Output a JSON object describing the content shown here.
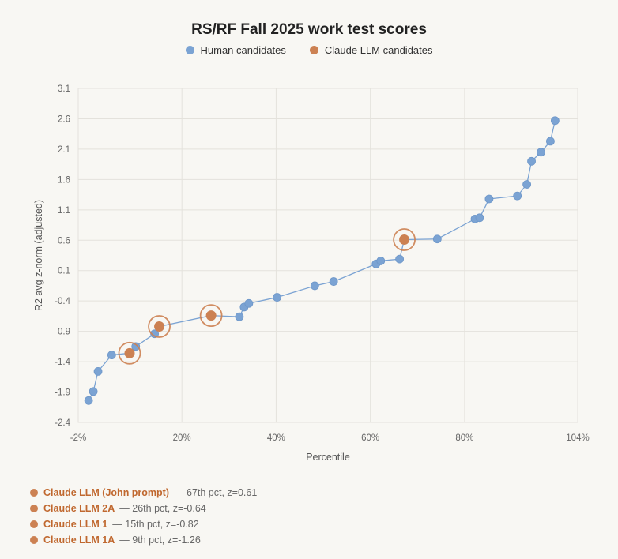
{
  "colors": {
    "human": "#7ba3d3",
    "claude": "#cc8152",
    "line": "#7ba3d3",
    "grid": "#e4e2dc"
  },
  "chart_data": {
    "type": "scatter",
    "title": "RS/RF Fall 2025 work test scores",
    "xlabel": "Percentile",
    "ylabel": "R2 avg z-norm (adjusted)",
    "xlim": [
      -2,
      104
    ],
    "ylim": [
      -2.4,
      3.1
    ],
    "xticks": [
      -2,
      20,
      40,
      60,
      80,
      104
    ],
    "xtick_labels": [
      "-2%",
      "20%",
      "40%",
      "60%",
      "80%",
      "104%"
    ],
    "yticks": [
      -2.4,
      -1.9,
      -1.4,
      -0.9,
      -0.4,
      0.1,
      0.6,
      1.1,
      1.6,
      2.1,
      2.6,
      3.1
    ],
    "ytick_labels": [
      "-2.4",
      "-1.9",
      "-1.4",
      "-0.9",
      "-0.4",
      "0.1",
      "0.6",
      "1.1",
      "1.6",
      "2.1",
      "2.6",
      "3.1"
    ],
    "grid": true,
    "legend": "top",
    "series": [
      {
        "name": "Human candidates",
        "x": [
          0.2,
          1.2,
          2.2,
          5.1,
          10.2,
          14.2,
          32.2,
          33.2,
          34.2,
          40.2,
          48.2,
          52.2,
          61.2,
          62.2,
          66.2,
          74.2,
          82.2,
          83.2,
          85.2,
          91.2,
          93.2,
          94.2,
          96.2,
          98.2,
          99.2
        ],
        "y": [
          -2.04,
          -1.89,
          -1.56,
          -1.29,
          -1.15,
          -0.94,
          -0.66,
          -0.5,
          -0.44,
          -0.34,
          -0.15,
          -0.08,
          0.21,
          0.26,
          0.29,
          0.62,
          0.95,
          0.97,
          1.28,
          1.33,
          1.52,
          1.9,
          2.05,
          2.23,
          2.57
        ]
      },
      {
        "name": "Claude LLM candidates",
        "x": [
          8.9,
          15.2,
          26.2,
          67.2
        ],
        "y": [
          -1.26,
          -0.82,
          -0.64,
          0.61
        ]
      }
    ],
    "line_order_x": [
      0.2,
      1.2,
      2.2,
      5.1,
      8.9,
      10.2,
      14.2,
      15.2,
      26.2,
      32.2,
      33.2,
      34.2,
      40.2,
      48.2,
      52.2,
      61.2,
      62.2,
      66.2,
      67.2,
      74.2,
      82.2,
      83.2,
      85.2,
      91.2,
      93.2,
      94.2,
      96.2,
      98.2,
      99.2
    ],
    "line_order_y": [
      -2.04,
      -1.89,
      -1.56,
      -1.29,
      -1.26,
      -1.15,
      -0.94,
      -0.82,
      -0.64,
      -0.66,
      -0.5,
      -0.44,
      -0.34,
      -0.15,
      -0.08,
      0.21,
      0.26,
      0.29,
      0.61,
      0.62,
      0.95,
      0.97,
      1.28,
      1.33,
      1.52,
      1.9,
      2.05,
      2.23,
      2.57
    ]
  },
  "notes": [
    {
      "name": "Claude LLM (John prompt)",
      "detail": "— 67th pct, z=0.61"
    },
    {
      "name": "Claude LLM 2A",
      "detail": "— 26th pct, z=-0.64"
    },
    {
      "name": "Claude LLM 1",
      "detail": "— 15th pct, z=-0.82"
    },
    {
      "name": "Claude LLM 1A",
      "detail": "— 9th pct, z=-1.26"
    }
  ]
}
